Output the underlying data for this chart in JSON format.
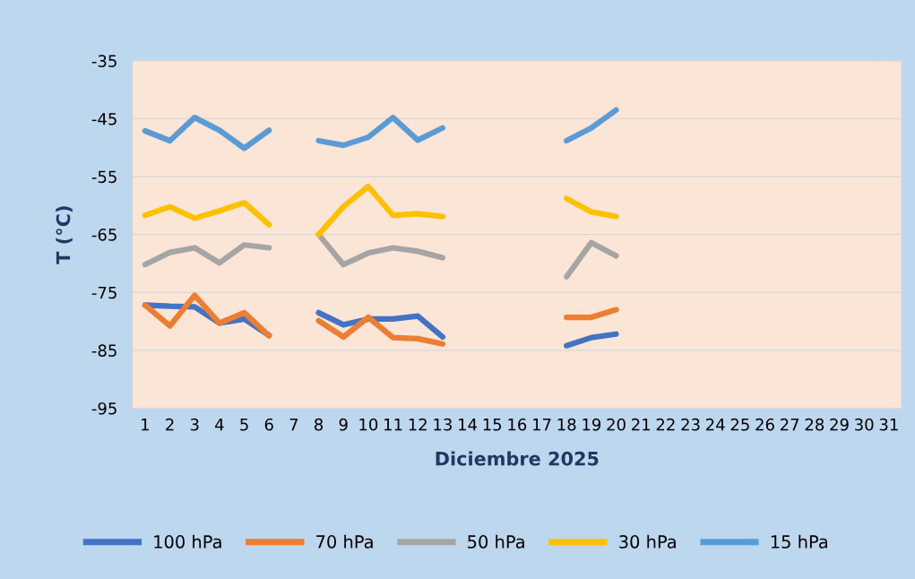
{
  "chart_data": {
    "type": "line",
    "xlabel": "Diciembre 2025",
    "ylabel": "T (°C)",
    "categories": [
      "1",
      "2",
      "3",
      "4",
      "5",
      "6",
      "7",
      "8",
      "9",
      "10",
      "11",
      "12",
      "13",
      "14",
      "15",
      "16",
      "17",
      "18",
      "19",
      "20",
      "21",
      "22",
      "23",
      "24",
      "25",
      "26",
      "27",
      "28",
      "29",
      "30",
      "31"
    ],
    "series": [
      {
        "name": "100 hPa",
        "color": "#4472c4",
        "values": [
          -77.2,
          -77.4,
          -77.5,
          -80.3,
          -79.6,
          -82.4,
          null,
          -78.5,
          -80.6,
          -79.6,
          -79.6,
          -79.1,
          -82.7,
          null,
          null,
          null,
          null,
          -84.2,
          -82.8,
          -82.2,
          null,
          null,
          null,
          null,
          null,
          null,
          null,
          null,
          null,
          null,
          null
        ]
      },
      {
        "name": "70 hPa",
        "color": "#ed7d31",
        "values": [
          -77.2,
          -80.8,
          -75.5,
          -80.3,
          -78.5,
          -82.5,
          null,
          -79.9,
          -82.7,
          -79.3,
          -82.8,
          -83.0,
          -83.9,
          null,
          null,
          null,
          null,
          -79.3,
          -79.3,
          -78.0,
          null,
          null,
          null,
          null,
          null,
          null,
          null,
          null,
          null,
          null,
          null
        ]
      },
      {
        "name": "50 hPa",
        "color": "#a5a5a5",
        "values": [
          -70.2,
          -68.1,
          -67.3,
          -69.9,
          -66.8,
          -67.3,
          null,
          -65.0,
          -70.2,
          -68.2,
          -67.3,
          -67.9,
          -69.0,
          null,
          null,
          null,
          null,
          -72.3,
          -66.4,
          -68.7,
          null,
          null,
          null,
          null,
          null,
          null,
          null,
          null,
          null,
          null,
          null
        ]
      },
      {
        "name": "30 hPa",
        "color": "#ffc000",
        "values": [
          -61.7,
          -60.2,
          -62.2,
          -60.9,
          -59.5,
          -63.3,
          null,
          -65.0,
          -60.2,
          -56.7,
          -61.7,
          -61.4,
          -61.9,
          null,
          null,
          null,
          null,
          -58.8,
          -61.1,
          -61.9,
          null,
          null,
          null,
          null,
          null,
          null,
          null,
          null,
          null,
          null,
          null
        ]
      },
      {
        "name": "15 hPa",
        "color": "#5b9bd5",
        "values": [
          -47.1,
          -48.8,
          -44.8,
          -47.0,
          -50.1,
          -47.0,
          null,
          -48.8,
          -49.6,
          -48.2,
          -44.8,
          -48.7,
          -46.6,
          null,
          null,
          null,
          null,
          -48.8,
          -46.6,
          -43.5,
          null,
          null,
          null,
          null,
          null,
          null,
          null,
          null,
          null,
          null,
          null
        ]
      }
    ],
    "ylim": [
      -95,
      -35
    ],
    "yticks": [
      -95,
      -85,
      -75,
      -65,
      -55,
      -45,
      -35
    ],
    "grid": "y",
    "legend": "bottom",
    "line_style": "solid",
    "marker": "none"
  }
}
